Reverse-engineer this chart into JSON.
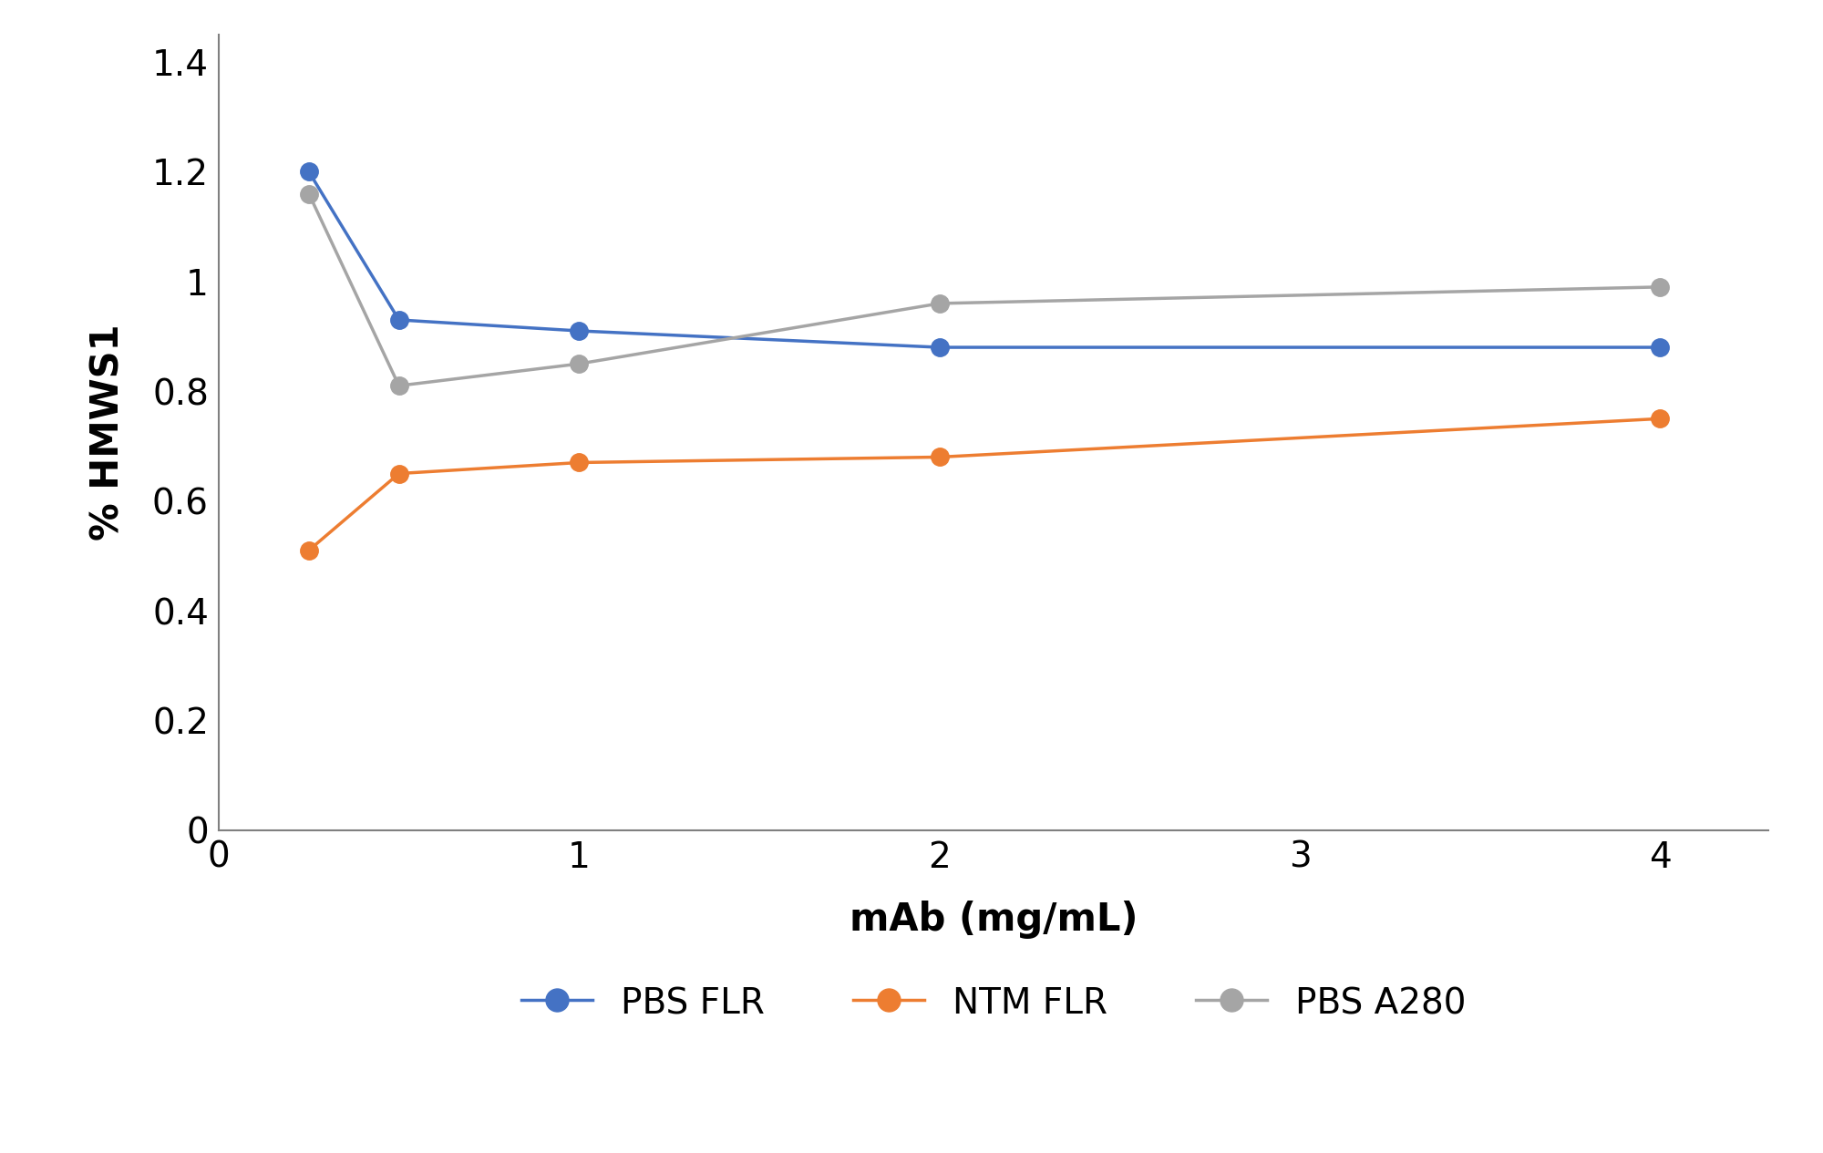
{
  "series": [
    {
      "label": "PBS FLR",
      "color": "#4472C4",
      "x": [
        0.25,
        0.5,
        1.0,
        2.0,
        4.0
      ],
      "y": [
        1.2,
        0.93,
        0.91,
        0.88,
        0.88
      ]
    },
    {
      "label": "NTM FLR",
      "color": "#ED7D31",
      "x": [
        0.25,
        0.5,
        1.0,
        2.0,
        4.0
      ],
      "y": [
        0.51,
        0.65,
        0.67,
        0.68,
        0.75
      ]
    },
    {
      "label": "PBS A280",
      "color": "#A5A5A5",
      "x": [
        0.25,
        0.5,
        1.0,
        2.0,
        4.0
      ],
      "y": [
        1.16,
        0.81,
        0.85,
        0.96,
        0.99
      ]
    }
  ],
  "xlabel": "mAb (mg/mL)",
  "ylabel": "% HMWS1",
  "xlim": [
    0,
    4.3
  ],
  "ylim": [
    0,
    1.45
  ],
  "xticks": [
    0,
    1,
    2,
    3,
    4
  ],
  "xtick_labels": [
    "0",
    "1",
    "2",
    "3",
    "4"
  ],
  "yticks": [
    0,
    0.2,
    0.4,
    0.6,
    0.8,
    1.0,
    1.2,
    1.4
  ],
  "ytick_labels": [
    "0",
    "0.2",
    "0.4",
    "0.6",
    "0.8",
    "1",
    "1.2",
    "1.4"
  ],
  "marker": "o",
  "marker_size": 14,
  "line_width": 2.5,
  "legend_fontsize": 28,
  "axis_label_fontsize": 30,
  "tick_fontsize": 28,
  "spine_color": "#808080",
  "background_color": "#ffffff"
}
